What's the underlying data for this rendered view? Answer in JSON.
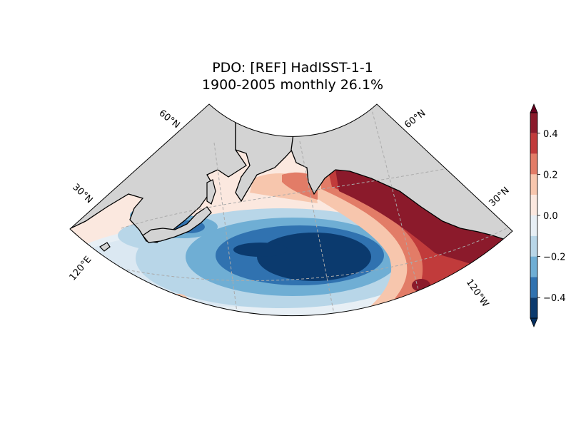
{
  "title": {
    "line1": "PDO: [REF] HadISST-1-1",
    "line2": "1900-2005 monthly 26.1%"
  },
  "map": {
    "projection": "lambert-conformal-conic",
    "region": "North Pacific",
    "land_color": "#d3d3d3",
    "coastline_color": "#000000",
    "gridline_color": "#aaaaaa",
    "lat_labels_left": [
      "60°N",
      "30°N"
    ],
    "lat_labels_right": [
      "60°N",
      "30°N"
    ],
    "lon_labels": [
      "120°E",
      "120°W"
    ]
  },
  "colorbar": {
    "colormap": "RdBu_r",
    "range": [
      -0.5,
      0.5
    ],
    "extend": "both",
    "step": 0.1,
    "tick_labels": [
      "0.4",
      "0.2",
      "0.0",
      "−0.2",
      "−0.4"
    ],
    "bins": [
      {
        "min": 0.4,
        "max": 0.5,
        "color": "#8b1a2b"
      },
      {
        "min": 0.3,
        "max": 0.4,
        "color": "#c13b3b"
      },
      {
        "min": 0.2,
        "max": 0.3,
        "color": "#e27c67"
      },
      {
        "min": 0.1,
        "max": 0.2,
        "color": "#f7c6ad"
      },
      {
        "min": 0.0,
        "max": 0.1,
        "color": "#fbe8df"
      },
      {
        "min": -0.1,
        "max": 0.0,
        "color": "#e7eff5"
      },
      {
        "min": -0.2,
        "max": -0.1,
        "color": "#b8d6e8"
      },
      {
        "min": -0.3,
        "max": -0.2,
        "color": "#6faed4"
      },
      {
        "min": -0.4,
        "max": -0.3,
        "color": "#3072b0"
      },
      {
        "min": -0.5,
        "max": -0.4,
        "color": "#0b3a6e"
      }
    ],
    "over_color": "#67001f",
    "under_color": "#053061"
  }
}
